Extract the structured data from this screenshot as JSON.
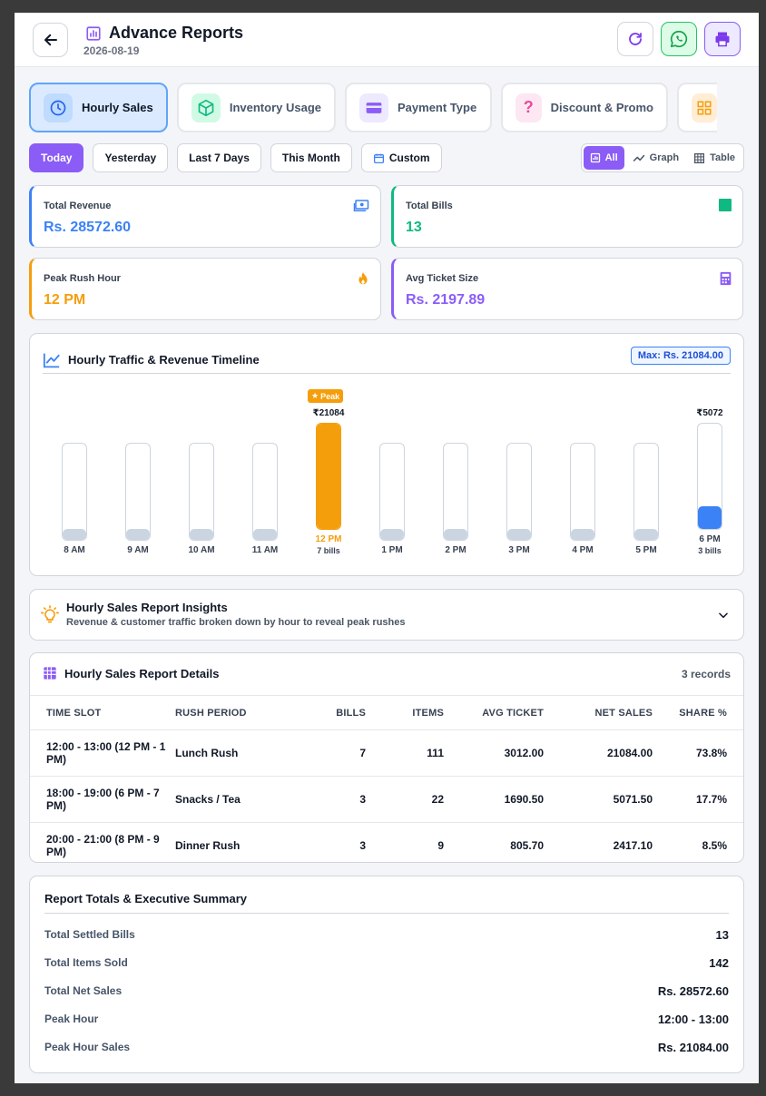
{
  "header": {
    "title": "Advance Reports",
    "date": "2026-08-19"
  },
  "tabs": [
    {
      "label": "Hourly Sales",
      "icon": "clock-icon",
      "active": true
    },
    {
      "label": "Inventory Usage",
      "icon": "box-icon",
      "active": false
    },
    {
      "label": "Payment Type",
      "icon": "card-icon",
      "active": false
    },
    {
      "label": "Discount & Promo",
      "icon": "question-icon",
      "active": false
    },
    {
      "label": "",
      "icon": "grid-icon",
      "active": false
    }
  ],
  "filters": {
    "today": "Today",
    "yesterday": "Yesterday",
    "last7": "Last 7 Days",
    "month": "This Month",
    "custom": "Custom"
  },
  "view_toggle": {
    "all": "All",
    "graph": "Graph",
    "table": "Table"
  },
  "stats": {
    "revenue": {
      "label": "Total Revenue",
      "value": "Rs. 28572.60",
      "color": "#3b82f6"
    },
    "bills": {
      "label": "Total Bills",
      "value": "13",
      "color": "#10b981"
    },
    "peak": {
      "label": "Peak Rush Hour",
      "value": "12 PM",
      "color": "#f59e0b"
    },
    "avg": {
      "label": "Avg Ticket Size",
      "value": "Rs. 2197.89",
      "color": "#8b5cf6"
    }
  },
  "chart": {
    "title": "Hourly Traffic & Revenue Timeline",
    "max_label": "Max: Rs. 21084.00",
    "peak_badge": "Peak"
  },
  "chart_data": {
    "type": "bar",
    "categories": [
      "8 AM",
      "9 AM",
      "10 AM",
      "11 AM",
      "12 PM",
      "1 PM",
      "2 PM",
      "3 PM",
      "4 PM",
      "5 PM",
      "6 PM"
    ],
    "values": [
      0,
      0,
      0,
      0,
      21084,
      0,
      0,
      0,
      0,
      0,
      5072
    ],
    "value_labels": [
      "",
      "",
      "",
      "",
      "₹21084",
      "",
      "",
      "",
      "",
      "",
      "₹5072"
    ],
    "sub_labels": [
      "",
      "",
      "",
      "",
      "7 bills",
      "",
      "",
      "",
      "",
      "",
      "3 bills"
    ],
    "ylim": [
      0,
      21084
    ],
    "peak_index": 4
  },
  "insights": {
    "title": "Hourly Sales Report Insights",
    "subtitle": "Revenue & customer traffic broken down by hour to reveal peak rushes"
  },
  "details": {
    "title": "Hourly Sales Report Details",
    "records": "3 records",
    "columns": [
      "TIME SLOT",
      "RUSH PERIOD",
      "BILLS",
      "ITEMS",
      "AVG TICKET",
      "NET SALES",
      "SHARE %"
    ],
    "rows": [
      [
        "12:00 - 13:00 (12 PM - 1 PM)",
        "Lunch Rush",
        "7",
        "111",
        "3012.00",
        "21084.00",
        "73.8%"
      ],
      [
        "18:00 - 19:00 (6 PM - 7 PM)",
        "Snacks / Tea",
        "3",
        "22",
        "1690.50",
        "5071.50",
        "17.7%"
      ],
      [
        "20:00 - 21:00 (8 PM - 9 PM)",
        "Dinner Rush",
        "3",
        "9",
        "805.70",
        "2417.10",
        "8.5%"
      ]
    ]
  },
  "summary": {
    "title": "Report Totals & Executive Summary",
    "rows": [
      {
        "label": "Total Settled Bills",
        "value": "13"
      },
      {
        "label": "Total Items Sold",
        "value": "142"
      },
      {
        "label": "Total Net Sales",
        "value": "Rs. 28572.60"
      },
      {
        "label": "Peak Hour",
        "value": "12:00 - 13:00"
      },
      {
        "label": "Peak Hour Sales",
        "value": "Rs. 21084.00"
      }
    ]
  }
}
